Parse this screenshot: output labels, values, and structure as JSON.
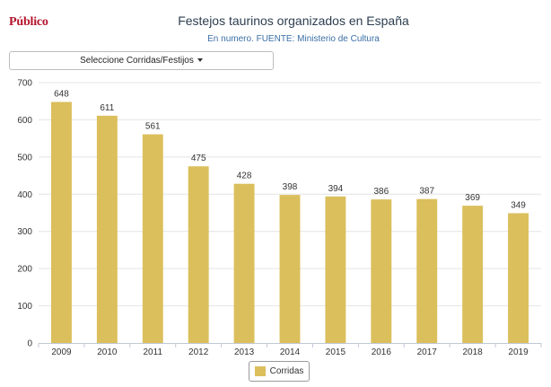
{
  "brand": {
    "logo_text": "Público"
  },
  "header": {
    "title": "Festejos taurinos organizados en España",
    "subtitle": "En numero. FUENTE: Ministerio de Cultura"
  },
  "selector": {
    "label": "Seleccione Corridas/Festijos"
  },
  "colors": {
    "bar": "#dbbf5c",
    "grid": "#e4e4e4",
    "axis_text": "#333333"
  },
  "chart_data": {
    "type": "bar",
    "title": "Festejos taurinos organizados en España",
    "subtitle": "En numero. FUENTE: Ministerio de Cultura",
    "xlabel": "",
    "ylabel": "",
    "categories": [
      "2009",
      "2010",
      "2011",
      "2012",
      "2013",
      "2014",
      "2015",
      "2016",
      "2017",
      "2018",
      "2019"
    ],
    "series": [
      {
        "name": "Corridas",
        "values": [
          648,
          611,
          561,
          475,
          428,
          398,
          394,
          386,
          387,
          369,
          349
        ]
      }
    ],
    "ylim": [
      0,
      700
    ],
    "yticks": [
      0,
      100,
      200,
      300,
      400,
      500,
      600,
      700
    ],
    "grid": true,
    "data_labels": true,
    "legend": "bottom-center"
  }
}
